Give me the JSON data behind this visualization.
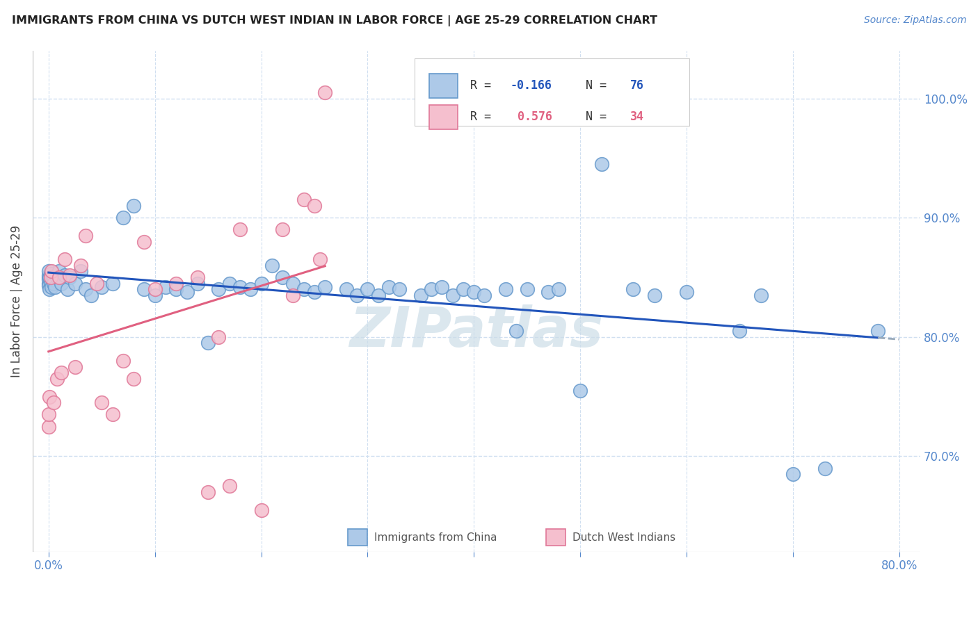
{
  "title": "IMMIGRANTS FROM CHINA VS DUTCH WEST INDIAN IN LABOR FORCE | AGE 25-29 CORRELATION CHART",
  "source": "Source: ZipAtlas.com",
  "ylabel": "In Labor Force | Age 25-29",
  "x_tick_labels": [
    "0.0%",
    "",
    "",
    "",
    "",
    "",
    "",
    "",
    "80.0%"
  ],
  "x_tick_vals": [
    0.0,
    10.0,
    20.0,
    30.0,
    40.0,
    50.0,
    60.0,
    70.0,
    80.0
  ],
  "y_tick_labels": [
    "70.0%",
    "80.0%",
    "90.0%",
    "100.0%"
  ],
  "y_tick_vals": [
    70.0,
    80.0,
    90.0,
    100.0
  ],
  "xlim": [
    -1.5,
    82.0
  ],
  "ylim": [
    62.0,
    104.0
  ],
  "china_R": -0.166,
  "china_N": 76,
  "dwi_R": 0.576,
  "dwi_N": 34,
  "china_color": "#adc9e8",
  "china_edge_color": "#6699cc",
  "dwi_color": "#f5bfce",
  "dwi_edge_color": "#e07898",
  "china_line_color": "#2255bb",
  "china_line_color_dash": "#99aabb",
  "dwi_line_color": "#e06080",
  "title_color": "#222222",
  "axis_color": "#5588cc",
  "grid_color": "#d0dff0",
  "watermark_color": "#ccdde8",
  "legend_r_color_china": "#2255bb",
  "legend_r_color_dwi": "#e06080",
  "china_x": [
    0.0,
    0.0,
    0.0,
    0.0,
    0.0,
    0.0,
    0.1,
    0.1,
    0.2,
    0.2,
    0.3,
    0.3,
    0.4,
    0.5,
    0.5,
    0.6,
    0.8,
    1.0,
    1.2,
    1.5,
    1.8,
    2.0,
    2.5,
    3.0,
    3.5,
    4.0,
    5.0,
    6.0,
    7.0,
    8.0,
    9.0,
    10.0,
    11.0,
    12.0,
    13.0,
    14.0,
    15.0,
    16.0,
    17.0,
    18.0,
    19.0,
    20.0,
    21.0,
    22.0,
    23.0,
    24.0,
    25.0,
    26.0,
    28.0,
    29.0,
    30.0,
    31.0,
    32.0,
    33.0,
    35.0,
    36.0,
    37.0,
    38.0,
    39.0,
    40.0,
    41.0,
    43.0,
    44.0,
    45.0,
    47.0,
    48.0,
    50.0,
    52.0,
    55.0,
    57.0,
    60.0,
    65.0,
    67.0,
    70.0,
    73.0,
    78.0
  ],
  "china_y": [
    85.0,
    84.5,
    84.8,
    85.2,
    85.5,
    84.3,
    84.0,
    85.0,
    84.5,
    85.3,
    85.0,
    84.2,
    84.8,
    85.0,
    84.5,
    84.2,
    85.0,
    85.5,
    84.5,
    85.2,
    84.0,
    85.0,
    84.5,
    85.5,
    84.0,
    83.5,
    84.2,
    84.5,
    90.0,
    91.0,
    84.0,
    83.5,
    84.2,
    84.0,
    83.8,
    84.5,
    79.5,
    84.0,
    84.5,
    84.2,
    84.0,
    84.5,
    86.0,
    85.0,
    84.5,
    84.0,
    83.8,
    84.2,
    84.0,
    83.5,
    84.0,
    83.5,
    84.2,
    84.0,
    83.5,
    84.0,
    84.2,
    83.5,
    84.0,
    83.8,
    83.5,
    84.0,
    80.5,
    84.0,
    83.8,
    84.0,
    75.5,
    94.5,
    84.0,
    83.5,
    83.8,
    80.5,
    83.5,
    68.5,
    69.0,
    80.5
  ],
  "dwi_x": [
    0.0,
    0.0,
    0.1,
    0.2,
    0.3,
    0.5,
    0.8,
    1.0,
    1.2,
    1.5,
    2.0,
    2.5,
    3.0,
    3.5,
    4.5,
    5.0,
    6.0,
    7.0,
    8.0,
    9.0,
    10.0,
    12.0,
    14.0,
    15.0,
    16.0,
    17.0,
    18.0,
    20.0,
    22.0,
    23.0,
    24.0,
    25.0,
    25.5,
    26.0
  ],
  "dwi_y": [
    72.5,
    73.5,
    75.0,
    85.0,
    85.5,
    74.5,
    76.5,
    85.0,
    77.0,
    86.5,
    85.2,
    77.5,
    86.0,
    88.5,
    84.5,
    74.5,
    73.5,
    78.0,
    76.5,
    88.0,
    84.0,
    84.5,
    85.0,
    67.0,
    80.0,
    67.5,
    89.0,
    65.5,
    89.0,
    83.5,
    91.5,
    91.0,
    86.5,
    100.5
  ]
}
